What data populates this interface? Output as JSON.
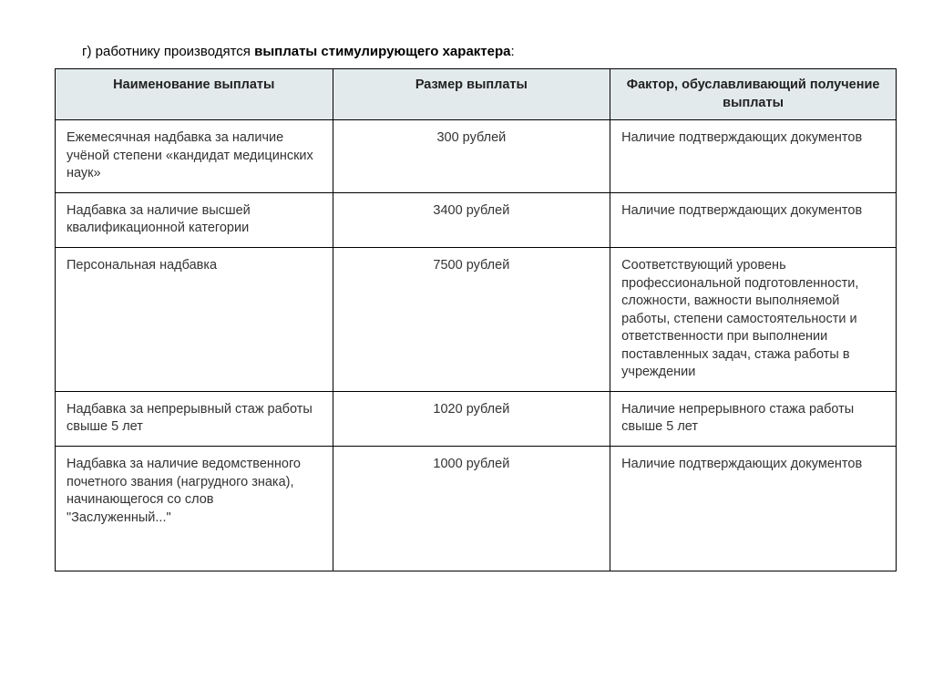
{
  "heading": {
    "prefix": "г) работнику производятся ",
    "bold": "выплаты стимулирующего характера",
    "suffix": ":"
  },
  "table": {
    "header_bg": "#e3eaec",
    "border_color": "#000000",
    "font_family": "Arial",
    "header_fontsize": 14.5,
    "body_fontsize": 14.5,
    "columns": [
      {
        "label": "Наименование выплаты",
        "width_pct": 33,
        "align": "left"
      },
      {
        "label": "Размер выплаты",
        "width_pct": 33,
        "align": "center"
      },
      {
        "label": "Фактор, обуславливающий получение выплаты",
        "width_pct": 34,
        "align": "left"
      }
    ],
    "rows": [
      {
        "name": "Ежемесячная надбавка за наличие учёной степени «кандидат медицинских наук»",
        "amount": "300 рублей",
        "factor": "Наличие подтверждающих документов"
      },
      {
        "name": "Надбавка за наличие высшей квалификационной категории",
        "amount": "3400 рублей",
        "factor": "Наличие подтверждающих документов"
      },
      {
        "name": "Персональная надбавка",
        "amount": "7500 рублей",
        "factor": "Соответствующий уровень профессиональной подготовленности, сложности, важности выполняемой работы, степени самостоятельности и ответственности при выполнении поставленных задач, стажа работы в учреждении"
      },
      {
        "name": "Надбавка за непрерывный стаж работы свыше 5 лет",
        "amount": "1020 рублей",
        "factor": "Наличие непрерывного стажа работы свыше 5 лет"
      },
      {
        "name": "Надбавка за наличие ведомственного почетного звания (нагрудного знака), начинающегося со слов \"Заслуженный...\"",
        "amount": "1000 рублей",
        "factor": "Наличие подтверждающих документов"
      }
    ]
  }
}
